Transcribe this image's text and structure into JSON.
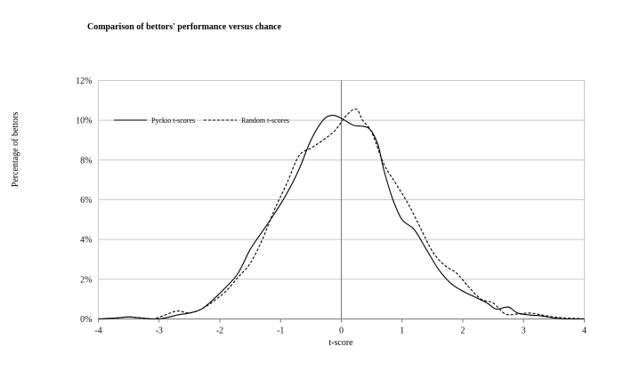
{
  "chart_data": {
    "type": "line",
    "title": "Comparison of bettors' performance versus chance",
    "xlabel": "t-score",
    "ylabel": "Percentage of bettors",
    "xlim": [
      -4,
      4
    ],
    "ylim": [
      0,
      12
    ],
    "x_ticks": [
      "-4",
      "-3",
      "-2",
      "-1",
      "0",
      "1",
      "2",
      "3",
      "4"
    ],
    "y_ticks": [
      "0%",
      "2%",
      "4%",
      "6%",
      "8%",
      "10%",
      "12%"
    ],
    "grid": "horizontal",
    "legend_position": "top-left",
    "series": [
      {
        "name": "Pyckio t-scores",
        "style": "solid",
        "color": "#000000",
        "points": [
          [
            -4.0,
            0.0
          ],
          [
            -3.7,
            0.05
          ],
          [
            -3.5,
            0.1
          ],
          [
            -3.3,
            0.05
          ],
          [
            -3.1,
            0.0
          ],
          [
            -2.9,
            0.05
          ],
          [
            -2.7,
            0.2
          ],
          [
            -2.5,
            0.3
          ],
          [
            -2.3,
            0.5
          ],
          [
            -2.1,
            1.0
          ],
          [
            -1.9,
            1.6
          ],
          [
            -1.7,
            2.3
          ],
          [
            -1.5,
            3.5
          ],
          [
            -1.3,
            4.4
          ],
          [
            -1.1,
            5.3
          ],
          [
            -0.9,
            6.3
          ],
          [
            -0.7,
            7.5
          ],
          [
            -0.5,
            9.0
          ],
          [
            -0.3,
            10.0
          ],
          [
            -0.15,
            10.25
          ],
          [
            0.0,
            10.1
          ],
          [
            0.2,
            9.75
          ],
          [
            0.45,
            9.6
          ],
          [
            0.6,
            8.8
          ],
          [
            0.7,
            7.5
          ],
          [
            0.85,
            6.0
          ],
          [
            1.0,
            5.0
          ],
          [
            1.2,
            4.5
          ],
          [
            1.4,
            3.5
          ],
          [
            1.6,
            2.5
          ],
          [
            1.8,
            1.8
          ],
          [
            2.0,
            1.4
          ],
          [
            2.2,
            1.1
          ],
          [
            2.4,
            0.8
          ],
          [
            2.55,
            0.5
          ],
          [
            2.75,
            0.6
          ],
          [
            2.9,
            0.3
          ],
          [
            3.1,
            0.2
          ],
          [
            3.3,
            0.15
          ],
          [
            3.5,
            0.05
          ],
          [
            3.7,
            0.0
          ],
          [
            4.0,
            0.0
          ]
        ]
      },
      {
        "name": "Random t-scores",
        "style": "dashed",
        "color": "#000000",
        "points": [
          [
            -4.0,
            0.0
          ],
          [
            -3.7,
            0.05
          ],
          [
            -3.5,
            0.1
          ],
          [
            -3.3,
            0.05
          ],
          [
            -3.1,
            0.0
          ],
          [
            -2.9,
            0.2
          ],
          [
            -2.7,
            0.4
          ],
          [
            -2.5,
            0.3
          ],
          [
            -2.3,
            0.5
          ],
          [
            -2.1,
            0.9
          ],
          [
            -1.9,
            1.4
          ],
          [
            -1.7,
            2.1
          ],
          [
            -1.5,
            2.8
          ],
          [
            -1.3,
            4.0
          ],
          [
            -1.1,
            5.5
          ],
          [
            -0.9,
            6.8
          ],
          [
            -0.7,
            8.2
          ],
          [
            -0.5,
            8.6
          ],
          [
            -0.3,
            9.0
          ],
          [
            -0.1,
            9.5
          ],
          [
            0.1,
            10.3
          ],
          [
            0.25,
            10.55
          ],
          [
            0.35,
            10.0
          ],
          [
            0.5,
            9.4
          ],
          [
            0.7,
            7.8
          ],
          [
            0.9,
            6.8
          ],
          [
            1.1,
            5.8
          ],
          [
            1.3,
            4.6
          ],
          [
            1.5,
            3.4
          ],
          [
            1.7,
            2.7
          ],
          [
            1.9,
            2.3
          ],
          [
            2.1,
            1.6
          ],
          [
            2.3,
            1.0
          ],
          [
            2.5,
            0.8
          ],
          [
            2.7,
            0.25
          ],
          [
            2.9,
            0.25
          ],
          [
            3.1,
            0.3
          ],
          [
            3.3,
            0.2
          ],
          [
            3.5,
            0.1
          ],
          [
            3.7,
            0.05
          ],
          [
            4.0,
            0.0
          ]
        ]
      }
    ]
  }
}
